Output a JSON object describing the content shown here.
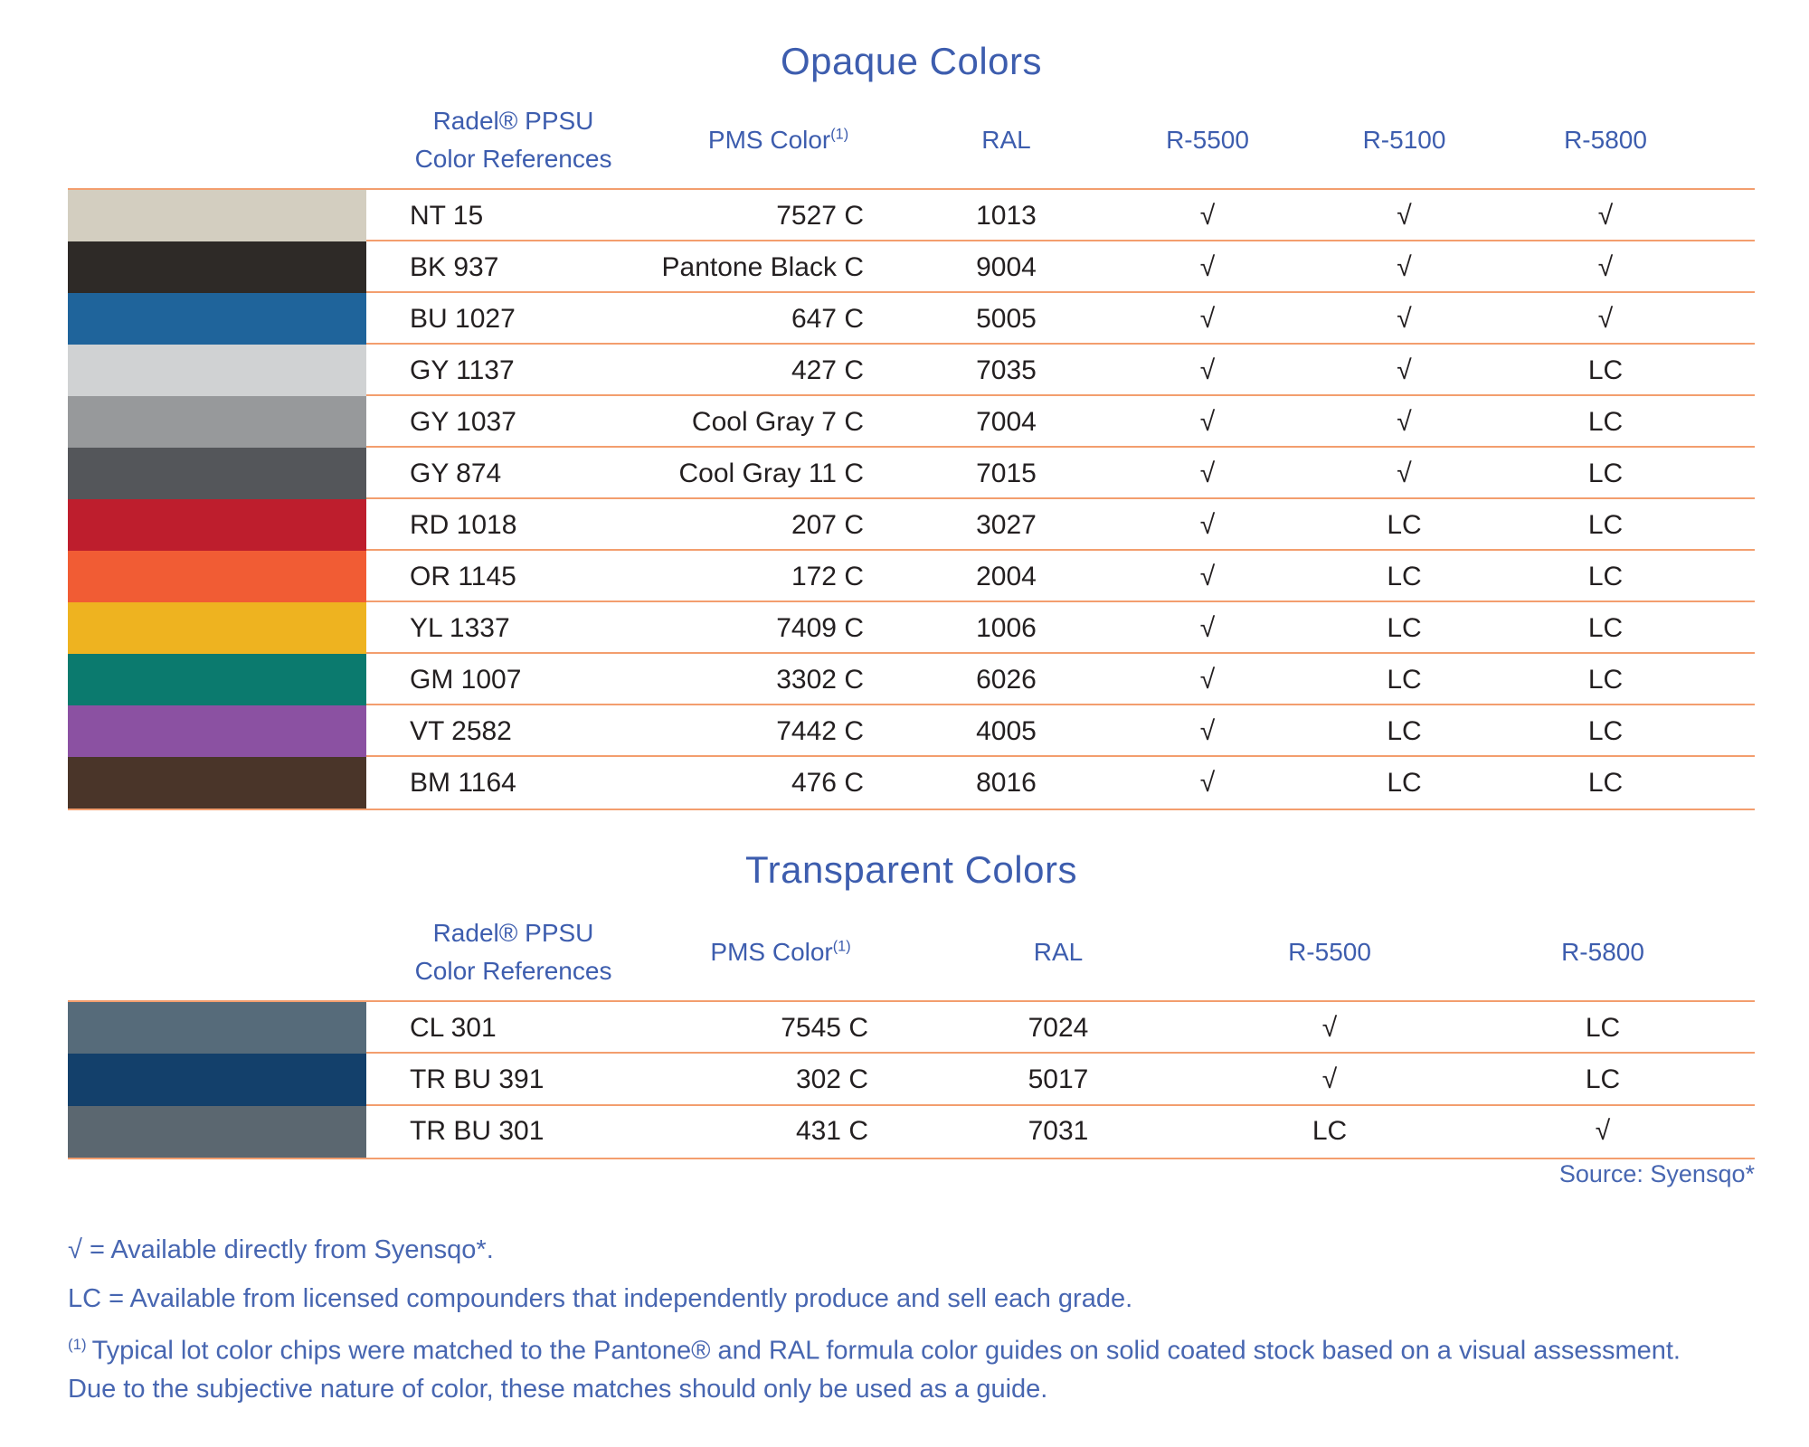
{
  "colors": {
    "heading_blue": "#3D5DAE",
    "rule_orange": "#F39E6E",
    "body_text": "#231F20",
    "footer_blue": "#4766B1"
  },
  "opaque": {
    "title": "Opaque Colors",
    "headers": {
      "ref_line1": "Radel® PPSU",
      "ref_line2": "Color References",
      "pms": "PMS Color",
      "pms_sup": "(1)",
      "ral": "RAL",
      "c1": "R-5500",
      "c2": "R-5100",
      "c3": "R-5800"
    },
    "rows": [
      {
        "swatch": "#D3CEC0",
        "ref": "NT 15",
        "pms": "7527 C",
        "ral": "1013",
        "r5500": "√",
        "r5100": "√",
        "r5800": "√"
      },
      {
        "swatch": "#2E2A27",
        "ref": "BK 937",
        "pms": "Pantone Black C",
        "ral": "9004",
        "r5500": "√",
        "r5100": "√",
        "r5800": "√"
      },
      {
        "swatch": "#1F649B",
        "ref": "BU 1027",
        "pms": "647 C",
        "ral": "5005",
        "r5500": "√",
        "r5100": "√",
        "r5800": "√"
      },
      {
        "swatch": "#D0D2D3",
        "ref": "GY 1137",
        "pms": "427 C",
        "ral": "7035",
        "r5500": "√",
        "r5100": "√",
        "r5800": "LC"
      },
      {
        "swatch": "#97999B",
        "ref": "GY 1037",
        "pms": "Cool Gray 7 C",
        "ral": "7004",
        "r5500": "√",
        "r5100": "√",
        "r5800": "LC"
      },
      {
        "swatch": "#54565A",
        "ref": "GY 874",
        "pms": "Cool Gray 11 C",
        "ral": "7015",
        "r5500": "√",
        "r5100": "√",
        "r5800": "LC"
      },
      {
        "swatch": "#BE1E2D",
        "ref": "RD 1018",
        "pms": "207 C",
        "ral": "3027",
        "r5500": "√",
        "r5100": "LC",
        "r5800": "LC"
      },
      {
        "swatch": "#F15C34",
        "ref": "OR 1145",
        "pms": "172 C",
        "ral": "2004",
        "r5500": "√",
        "r5100": "LC",
        "r5800": "LC"
      },
      {
        "swatch": "#EEB320",
        "ref": "YL 1337",
        "pms": "7409 C",
        "ral": "1006",
        "r5500": "√",
        "r5100": "LC",
        "r5800": "LC"
      },
      {
        "swatch": "#0B7A6E",
        "ref": "GM 1007",
        "pms": "3302 C",
        "ral": "6026",
        "r5500": "√",
        "r5100": "LC",
        "r5800": "LC"
      },
      {
        "swatch": "#8B51A2",
        "ref": "VT 2582",
        "pms": "7442 C",
        "ral": "4005",
        "r5500": "√",
        "r5100": "LC",
        "r5800": "LC"
      },
      {
        "swatch": "#4A3529",
        "ref": "BM 1164",
        "pms": "476 C",
        "ral": "8016",
        "r5500": "√",
        "r5100": "LC",
        "r5800": "LC"
      }
    ]
  },
  "transparent": {
    "title": "Transparent Colors",
    "headers": {
      "ref_line1": "Radel® PPSU",
      "ref_line2": "Color References",
      "pms": "PMS Color",
      "pms_sup": "(1)",
      "ral": "RAL",
      "c1": "R-5500",
      "c2": "R-5800"
    },
    "rows": [
      {
        "swatch": "#566B7A",
        "ref": "CL 301",
        "pms": "7545 C",
        "ral": "7024",
        "r5500": "√",
        "r5800": "LC"
      },
      {
        "swatch": "#13406B",
        "ref": "TR BU 391",
        "pms": "302 C",
        "ral": "5017",
        "r5500": "√",
        "r5800": "LC"
      },
      {
        "swatch": "#5B6770",
        "ref": "TR BU 301",
        "pms": "431 C",
        "ral": "7031",
        "r5500": "LC",
        "r5800": "√"
      }
    ]
  },
  "source_note": "Source: Syensqo*",
  "legend": [
    "√ = Available directly from Syensqo*.",
    "LC = Available from licensed compounders that independently produce and sell each grade."
  ],
  "footnote": {
    "marker": "(1)",
    "text": "Typical lot color chips were matched to the Pantone® and RAL formula color guides on solid coated stock based on a visual assessment. Due to the subjective nature of color, these matches should only be used as a guide."
  }
}
